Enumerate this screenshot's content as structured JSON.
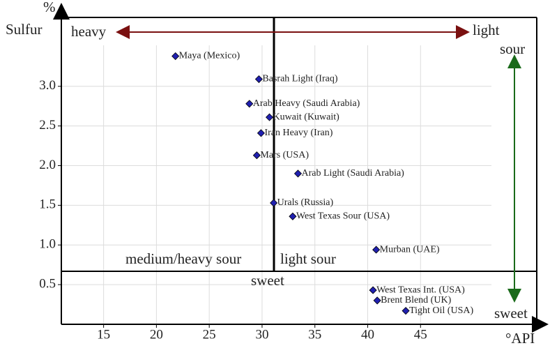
{
  "chart_data": {
    "type": "scatter",
    "x_label": "°API",
    "y_label_unit": "%",
    "y_label": "Sulfur",
    "annotations": {
      "heavy": "heavy",
      "light": "light",
      "sour": "sour",
      "sweet_right": "sweet",
      "medium_heavy_sour": "medium/heavy sour",
      "light_sour": "light sour",
      "sweet_center": "sweet"
    },
    "series": [
      {
        "color": "#2020b0",
        "labels": [
          "Maya (Mexico)",
          "Basrah Light (Iraq)",
          "Arab Heavy (Saudi Arabia)",
          "Kuwait (Kuwait)",
          "Iran Heavy (Iran)",
          "Mars (USA)",
          "Arab Light (Saudi Arabia)",
          "Urals (Russia)",
          "West Texas Sour (USA)",
          "Murban (UAE)",
          "West Texas Int. (USA)",
          "Brent Blend (UK)",
          "Tight Oil (USA)"
        ],
        "x": [
          21.8,
          29.7,
          28.8,
          30.7,
          29.9,
          29.5,
          33.4,
          31.1,
          32.9,
          40.8,
          40.5,
          40.9,
          43.6
        ],
        "values": [
          3.38,
          3.09,
          2.78,
          2.61,
          2.41,
          2.13,
          1.9,
          1.53,
          1.36,
          0.94,
          0.43,
          0.3,
          0.17
        ]
      }
    ],
    "xlim": [
      11,
      56
    ],
    "xticks": [
      15,
      20,
      25,
      30,
      35,
      40,
      45
    ],
    "ylim": [
      0,
      4
    ],
    "yticks": [
      0.5,
      {
        "value": 1,
        "label": "1.0"
      },
      1.5,
      {
        "value": 2,
        "label": "2.0"
      },
      2.5,
      {
        "value": 3,
        "label": "3.0"
      }
    ],
    "grid": true
  }
}
